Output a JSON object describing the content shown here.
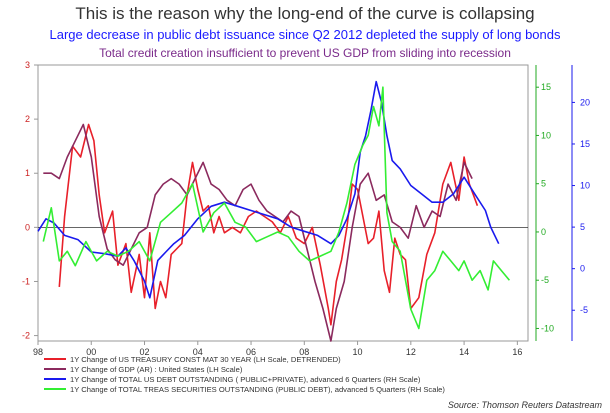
{
  "title": "This is the reason why the long-end of the curve is collapsing",
  "subtitle1": "Large decrease in public debt issuance since Q2 2012 depleted the supply of long bonds",
  "subtitle2": "Total credit creation insufficient to prevent US GDP from sliding into recession",
  "source": "Source: Thomson Reuters Datastream",
  "colors": {
    "red": "#e8202a",
    "purple": "#8b2a5e",
    "blue": "#1a1aee",
    "green": "#33ee33"
  },
  "chart_data": {
    "type": "line",
    "x_tick_labels": [
      "98",
      "00",
      "02",
      "04",
      "06",
      "08",
      "10",
      "12",
      "14",
      "16"
    ],
    "x_tick_years": [
      1998,
      2000,
      2002,
      2004,
      2006,
      2008,
      2010,
      2012,
      2014,
      2016
    ],
    "xlim": [
      1998,
      2016.4
    ],
    "left_axis": {
      "ticks": [
        "3",
        "2",
        "1",
        "0",
        "-1",
        "-2"
      ],
      "ylim": [
        -2.1,
        3
      ],
      "color": "#cc2222"
    },
    "right_axis_green": {
      "ticks": [
        "15",
        "10",
        "5",
        "0",
        "-5",
        "-10"
      ],
      "ylim": [
        -11.3,
        17.3
      ],
      "color": "#22aa22"
    },
    "right_axis_blue": {
      "ticks": [
        "20",
        "15",
        "10",
        "5",
        "0",
        "-5"
      ],
      "ylim": [
        -8.7,
        24.5
      ],
      "color": "#1a1aee"
    },
    "series": [
      {
        "name": "1Y Change of US TREASURY CONST MAT 30 YEAR (LH Scale, DETRENDED)",
        "axis": "left",
        "color": "#e8202a",
        "x": [
          1998.8,
          1999.0,
          1999.3,
          1999.6,
          1999.9,
          2000.1,
          2000.3,
          2000.5,
          2000.8,
          2001.0,
          2001.3,
          2001.5,
          2001.8,
          2002.0,
          2002.2,
          2002.4,
          2002.6,
          2002.8,
          2003.0,
          2003.2,
          2003.4,
          2003.6,
          2003.8,
          2004.0,
          2004.2,
          2004.4,
          2004.6,
          2004.8,
          2005.0,
          2005.3,
          2005.6,
          2005.9,
          2006.2,
          2006.5,
          2006.8,
          2007.1,
          2007.4,
          2007.7,
          2008.0,
          2008.3,
          2008.6,
          2008.9,
          2009.0,
          2009.2,
          2009.4,
          2009.6,
          2009.8,
          2010.0,
          2010.2,
          2010.4,
          2010.6,
          2010.8,
          2011.0,
          2011.2,
          2011.4,
          2011.6,
          2011.8,
          2012.0,
          2012.3,
          2012.6,
          2012.9,
          2013.2,
          2013.5,
          2013.8,
          2014.0,
          2014.2,
          2014.5
        ],
        "values": [
          -1.1,
          0.2,
          1.5,
          1.3,
          1.9,
          1.6,
          0.6,
          -0.1,
          0.3,
          -0.7,
          -0.3,
          -1.2,
          -0.5,
          -1.3,
          -0.1,
          -1.5,
          -1.0,
          -1.3,
          -0.5,
          -0.4,
          -0.3,
          0.6,
          1.2,
          0.7,
          0.3,
          0.4,
          -0.1,
          0.2,
          -0.1,
          0.0,
          -0.1,
          0.2,
          0.3,
          0.2,
          0.1,
          -0.1,
          0.2,
          -0.2,
          -0.3,
          0.0,
          -0.7,
          -1.5,
          -1.8,
          -1.0,
          -0.6,
          0.0,
          0.8,
          0.7,
          0.2,
          -0.3,
          -0.2,
          0.3,
          -0.8,
          -1.2,
          -0.2,
          -0.5,
          -0.6,
          -1.5,
          -1.3,
          -0.5,
          -0.1,
          0.8,
          1.2,
          0.5,
          1.3,
          0.8,
          0.4
        ]
      },
      {
        "name": "1Y Change of GDP (AR) : United States (LH Scale)",
        "axis": "left",
        "color": "#8b2a5e",
        "x": [
          1998.2,
          1998.5,
          1998.8,
          1999.1,
          1999.4,
          1999.7,
          2000.0,
          2000.3,
          2000.6,
          2000.9,
          2001.2,
          2001.5,
          2001.8,
          2002.1,
          2002.4,
          2002.7,
          2003.0,
          2003.3,
          2003.6,
          2003.9,
          2004.2,
          2004.5,
          2004.8,
          2005.1,
          2005.4,
          2005.7,
          2006.0,
          2006.3,
          2006.6,
          2006.9,
          2007.2,
          2007.5,
          2007.8,
          2008.1,
          2008.4,
          2008.7,
          2009.0,
          2009.2,
          2009.5,
          2009.8,
          2010.1,
          2010.4,
          2010.7,
          2011.0,
          2011.3,
          2011.6,
          2011.9,
          2012.2,
          2012.5,
          2012.8,
          2013.1,
          2013.4,
          2013.7,
          2014.0,
          2014.3
        ],
        "values": [
          1.0,
          1.0,
          0.9,
          1.3,
          1.6,
          1.9,
          1.3,
          0.2,
          -0.4,
          -0.6,
          -0.7,
          -0.4,
          -0.1,
          0.0,
          0.6,
          0.8,
          0.9,
          0.8,
          0.6,
          0.9,
          1.2,
          0.8,
          0.7,
          0.5,
          0.4,
          0.7,
          0.8,
          0.5,
          0.3,
          0.2,
          0.1,
          0.3,
          0.2,
          -0.4,
          -1.0,
          -1.5,
          -2.1,
          -1.5,
          -1.0,
          0.0,
          0.8,
          1.0,
          0.5,
          0.6,
          0.1,
          0.0,
          -0.2,
          0.4,
          0.0,
          0.3,
          0.2,
          0.8,
          0.5,
          1.2,
          0.9
        ]
      },
      {
        "name": "1Y Change of TOTAL US DEBT OUTSTANDING ( PUBLIC+PRIVATE), advanced 6 Quarters (RH Scale)",
        "axis": "right_blue",
        "color": "#1a1aee",
        "x": [
          1998.0,
          1998.3,
          1998.6,
          1999.0,
          1999.5,
          2000.0,
          2000.5,
          2001.0,
          2001.3,
          2001.6,
          2002.0,
          2002.2,
          2002.5,
          2002.8,
          2003.1,
          2003.5,
          2004.0,
          2004.5,
          2005.0,
          2005.5,
          2006.0,
          2006.5,
          2007.0,
          2007.5,
          2008.0,
          2008.5,
          2009.0,
          2009.3,
          2009.6,
          2009.9,
          2010.1,
          2010.3,
          2010.5,
          2010.7,
          2010.9,
          2011.1,
          2011.3,
          2011.6,
          2012.0,
          2012.4,
          2012.8,
          2013.2,
          2013.6,
          2014.0,
          2014.4,
          2014.8,
          2015.0,
          2015.3
        ],
        "values": [
          4.5,
          6.0,
          5.5,
          4.0,
          3.5,
          2.0,
          1.8,
          1.5,
          2.5,
          1.0,
          -1.5,
          -3.5,
          1.0,
          2.0,
          3.0,
          4.0,
          6.0,
          7.5,
          8.0,
          7.5,
          7.0,
          6.5,
          6.0,
          5.0,
          4.5,
          4.0,
          3.0,
          4.0,
          6.0,
          9.0,
          14.0,
          16.0,
          19.0,
          22.5,
          20.0,
          16.0,
          13.0,
          12.0,
          10.0,
          9.0,
          8.0,
          8.0,
          9.0,
          11.0,
          9.0,
          7.0,
          5.0,
          3.0
        ]
      },
      {
        "name": "1Y Change of TOTAL TREAS SECURITIES OUTSTANDING (PUBLIC DEBT), advanced 5 Quarters (RH Scale)",
        "axis": "right_green",
        "color": "#33ee33",
        "x": [
          1998.2,
          1998.5,
          1998.8,
          1999.1,
          1999.4,
          1999.8,
          2000.2,
          2000.6,
          2001.0,
          2001.4,
          2001.8,
          2002.2,
          2002.6,
          2003.0,
          2003.4,
          2003.8,
          2004.2,
          2004.6,
          2005.0,
          2005.4,
          2005.8,
          2006.2,
          2006.6,
          2007.0,
          2007.4,
          2007.8,
          2008.2,
          2008.6,
          2009.0,
          2009.3,
          2009.6,
          2009.9,
          2010.2,
          2010.4,
          2010.6,
          2010.8,
          2010.95,
          2011.1,
          2011.3,
          2011.6,
          2012.0,
          2012.3,
          2012.6,
          2012.9,
          2013.2,
          2013.5,
          2013.8,
          2014.0,
          2014.3,
          2014.6,
          2014.9,
          2015.1,
          2015.4,
          2015.7
        ],
        "values": [
          -1.0,
          2.5,
          -3.0,
          -2.0,
          -3.5,
          -1.0,
          -3.0,
          -2.0,
          -2.5,
          -2.0,
          -1.0,
          -3.0,
          1.0,
          2.0,
          3.0,
          5.0,
          0.0,
          2.0,
          3.0,
          1.0,
          0.5,
          -1.0,
          -0.5,
          0.0,
          -0.5,
          -2.0,
          -3.0,
          -2.5,
          -2.0,
          0.0,
          3.0,
          7.0,
          9.0,
          10.0,
          13.0,
          11.0,
          15.0,
          2.0,
          -1.0,
          -2.0,
          -8.0,
          -10.0,
          -5.0,
          -4.0,
          -2.0,
          -3.0,
          -4.0,
          -3.0,
          -5.0,
          -4.0,
          -6.0,
          -3.0,
          -4.0,
          -5.0
        ]
      }
    ]
  }
}
